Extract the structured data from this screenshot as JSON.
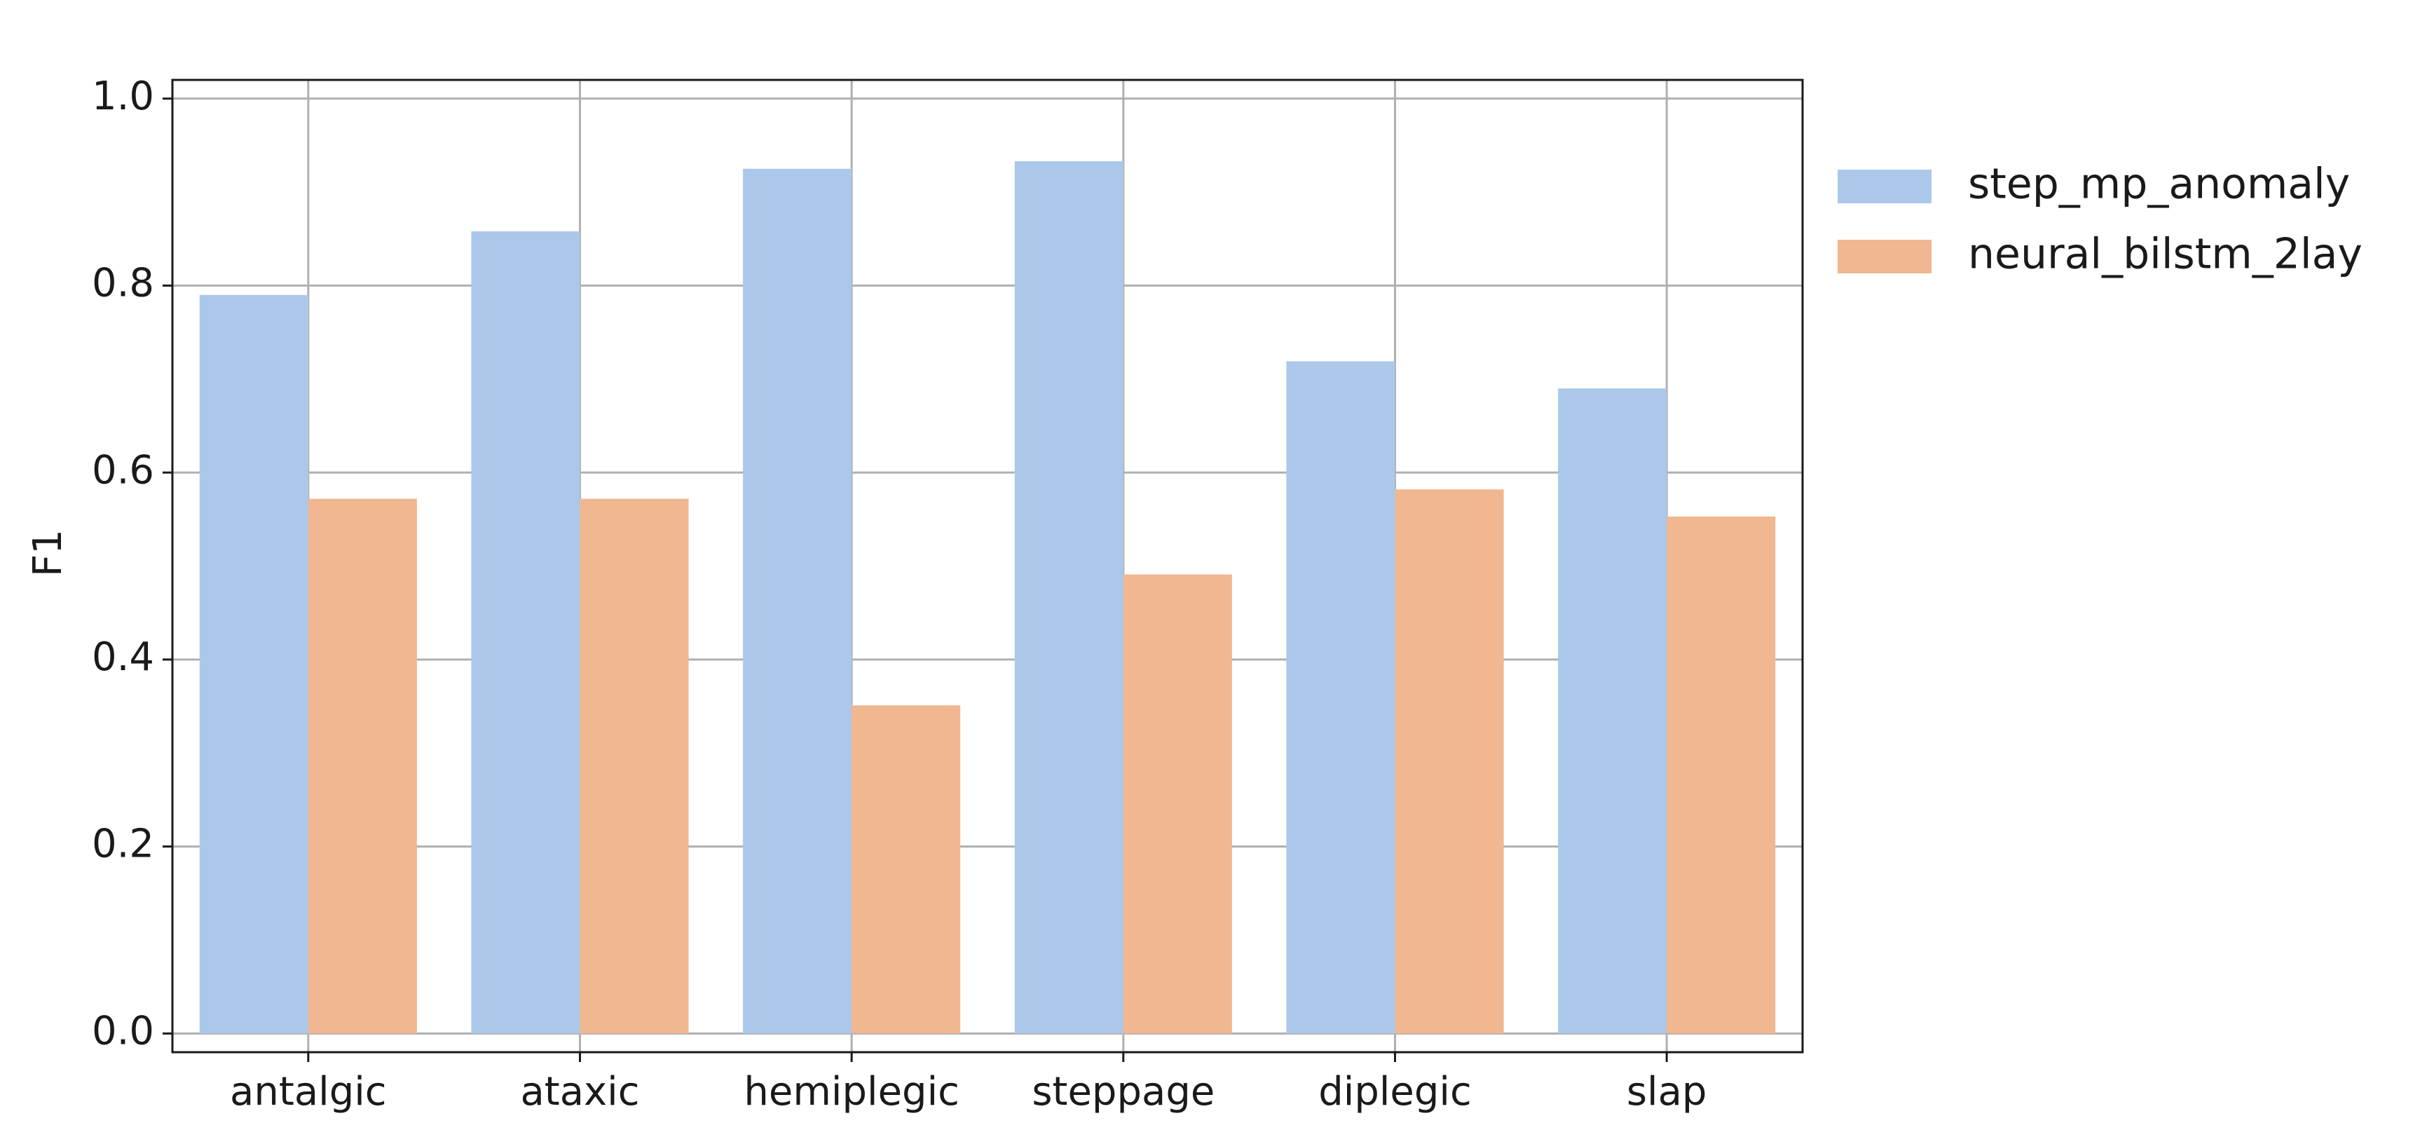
{
  "chart_data": {
    "type": "bar",
    "categories": [
      "antalgic",
      "ataxic",
      "hemiplegic",
      "steppage",
      "diplegic",
      "slap"
    ],
    "series": [
      {
        "name": "step_mp_anomaly",
        "color": "#abc8eb",
        "values": [
          0.79,
          0.858,
          0.925,
          0.933,
          0.719,
          0.69
        ]
      },
      {
        "name": "neural_bilstm_2lay",
        "color": "#f0b790",
        "values": [
          0.572,
          0.572,
          0.351,
          0.491,
          0.582,
          0.553
        ]
      }
    ],
    "ylabel": "F1",
    "xlabel": "",
    "ylim": [
      -0.02,
      1.02
    ],
    "yticks": [
      0.0,
      0.2,
      0.4,
      0.6,
      0.8,
      1.0
    ],
    "ytick_labels": [
      "0.0",
      "0.2",
      "0.4",
      "0.6",
      "0.8",
      "1.0"
    ],
    "grid": true,
    "legend_position": "outside-top-right"
  }
}
